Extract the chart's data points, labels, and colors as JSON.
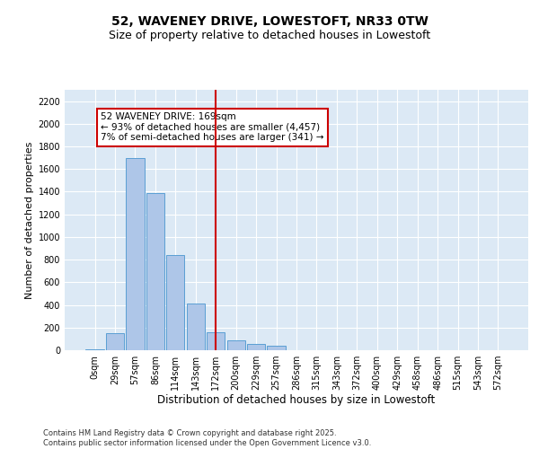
{
  "title_line1": "52, WAVENEY DRIVE, LOWESTOFT, NR33 0TW",
  "title_line2": "Size of property relative to detached houses in Lowestoft",
  "xlabel": "Distribution of detached houses by size in Lowestoft",
  "ylabel": "Number of detached properties",
  "bar_labels": [
    "0sqm",
    "29sqm",
    "57sqm",
    "86sqm",
    "114sqm",
    "143sqm",
    "172sqm",
    "200sqm",
    "229sqm",
    "257sqm",
    "286sqm",
    "315sqm",
    "343sqm",
    "372sqm",
    "400sqm",
    "429sqm",
    "458sqm",
    "486sqm",
    "515sqm",
    "543sqm",
    "572sqm"
  ],
  "bar_heights": [
    5,
    150,
    1700,
    1390,
    840,
    410,
    160,
    85,
    55,
    40,
    0,
    0,
    0,
    0,
    0,
    0,
    0,
    0,
    0,
    0,
    0
  ],
  "bar_color": "#aec6e8",
  "bar_edge_color": "#5a9fd4",
  "vline_x": 6,
  "vline_color": "#cc0000",
  "annotation_text": "52 WAVENEY DRIVE: 169sqm\n← 93% of detached houses are smaller (4,457)\n7% of semi-detached houses are larger (341) →",
  "annotation_box_color": "#cc0000",
  "ylim": [
    0,
    2300
  ],
  "yticks": [
    0,
    200,
    400,
    600,
    800,
    1000,
    1200,
    1400,
    1600,
    1800,
    2000,
    2200
  ],
  "background_color": "#dce9f5",
  "footer_line1": "Contains HM Land Registry data © Crown copyright and database right 2025.",
  "footer_line2": "Contains public sector information licensed under the Open Government Licence v3.0.",
  "grid_color": "#ffffff",
  "title_fontsize": 10,
  "subtitle_fontsize": 9,
  "tick_fontsize": 7,
  "ylabel_fontsize": 8,
  "xlabel_fontsize": 8.5,
  "annotation_fontsize": 7.5,
  "footer_fontsize": 6
}
